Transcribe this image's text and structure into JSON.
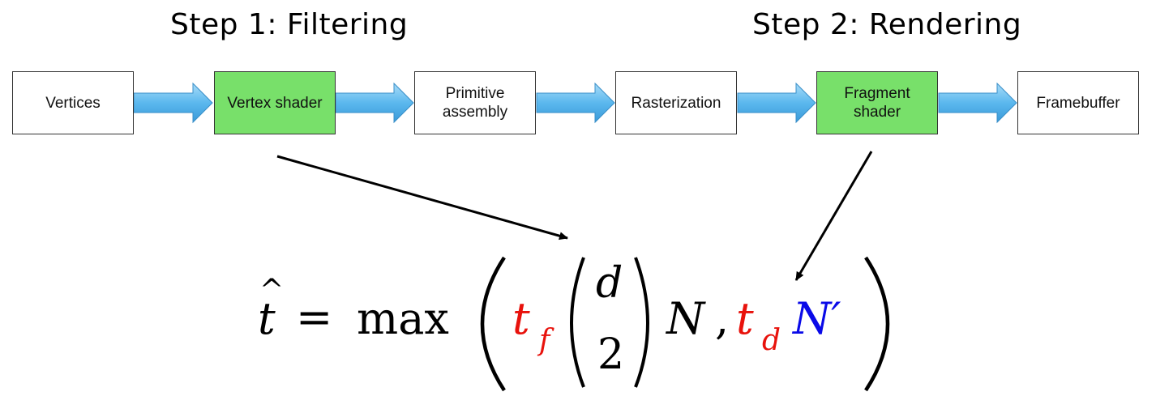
{
  "titles": {
    "step1": "Step 1: Filtering",
    "step2": "Step 2: Rendering"
  },
  "pipeline": {
    "stages": [
      {
        "label": "Vertices",
        "highlight": false
      },
      {
        "label": "Vertex shader",
        "highlight": true
      },
      {
        "label": "Primitive\nassembly",
        "highlight": false
      },
      {
        "label": "Rasterization",
        "highlight": false
      },
      {
        "label": "Fragment\nshader",
        "highlight": true
      },
      {
        "label": "Framebuffer",
        "highlight": false
      }
    ]
  },
  "colors": {
    "highlight": "#78e06a",
    "arrow_fill": "#5bb8ee",
    "formula_red": "#e8120c",
    "formula_blue": "#0a0ae8"
  },
  "formula": {
    "lhs": "t",
    "hat": "^",
    "equals": "=",
    "op": "max",
    "t": "t",
    "sub_f": "f",
    "binom_top": "d",
    "binom_bottom": "2",
    "N": "N",
    "comma": ",",
    "sub_d": "d",
    "N_prime": "N′"
  }
}
